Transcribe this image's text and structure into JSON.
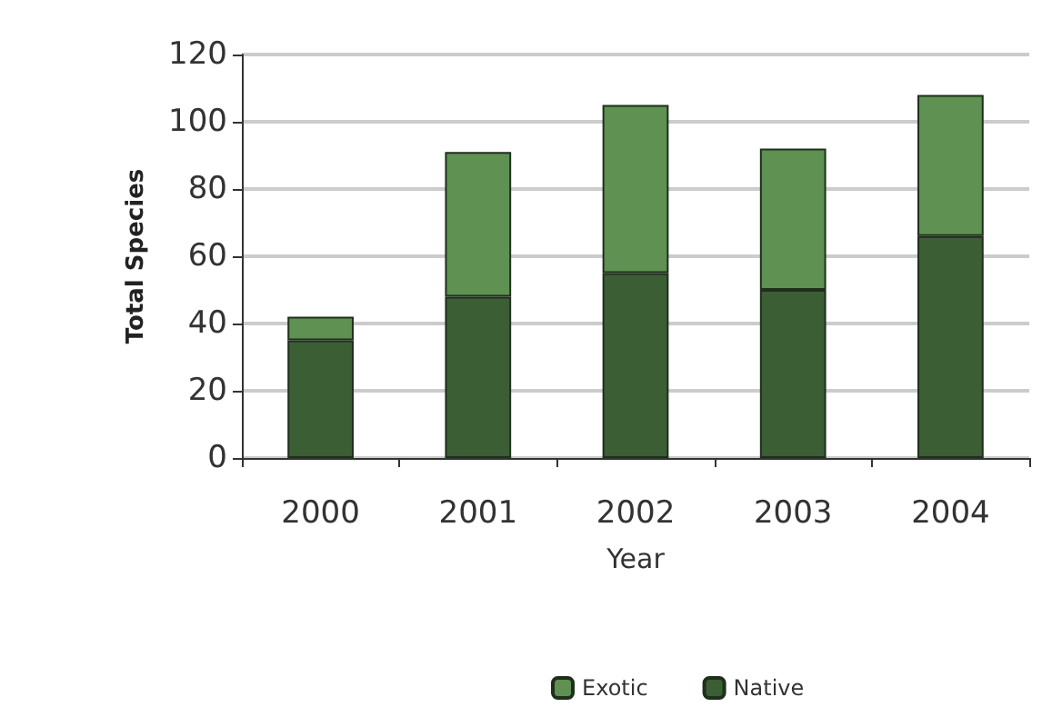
{
  "chart_data": {
    "type": "bar",
    "stacked": true,
    "xlabel": "Year",
    "ylabel": "Total Species",
    "categories": [
      "2000",
      "2001",
      "2002",
      "2003",
      "2004"
    ],
    "series": [
      {
        "name": "Native",
        "color": "#3b5e35",
        "values": [
          35,
          48,
          55,
          50,
          66
        ]
      },
      {
        "name": "Exotic",
        "color": "#5e9152",
        "values": [
          7,
          43,
          50,
          42,
          42
        ]
      }
    ],
    "ylim": [
      0,
      120
    ],
    "yticks": [
      0,
      20,
      40,
      60,
      80,
      100,
      120
    ],
    "grid": "y",
    "legend": "bottom"
  }
}
